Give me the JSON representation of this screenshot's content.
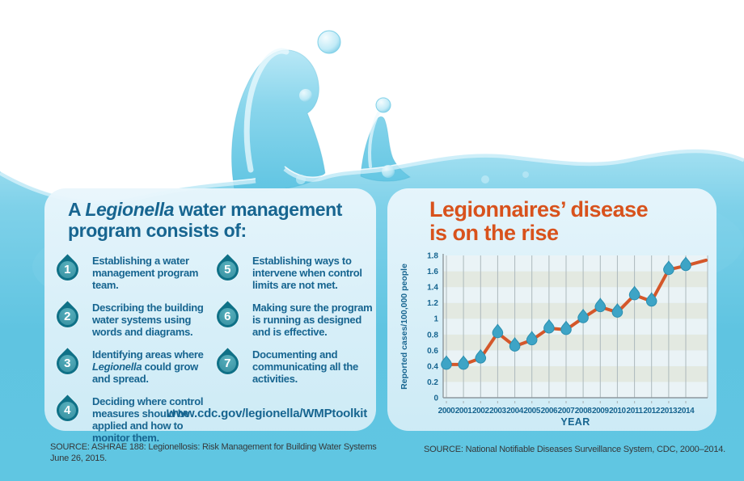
{
  "colors": {
    "title_blue": "#176590",
    "accent_orange": "#d8521c",
    "line_orange": "#d4572a",
    "marker_teal": "#3da4c6",
    "marker_stroke": "#2b8fb0",
    "step_drop_dark": "#0f7187",
    "step_drop_light": "#3e9fafa",
    "panel_bg": "#dff0f8",
    "band_light": "#eaf3f6",
    "band_dark": "#e3e9e1",
    "grid": "#acb8bc",
    "axis": "#8e989d",
    "water_blue": "#5fc4e1",
    "source_text": "#35383a"
  },
  "icons": {
    "step_marker": "water-drop-icon",
    "chart_marker": "water-drop-icon"
  },
  "left_panel": {
    "title_segments": [
      {
        "text": "A ",
        "italic": false
      },
      {
        "text": "Legionella",
        "italic": true
      },
      {
        "text": " water management\nprogram consists of:",
        "italic": false
      }
    ],
    "steps": [
      {
        "number": "1",
        "column": 1,
        "segments": [
          {
            "text": "Establishing a water management program team."
          }
        ]
      },
      {
        "number": "2",
        "column": 1,
        "segments": [
          {
            "text": "Describing the building water systems using words and diagrams."
          }
        ]
      },
      {
        "number": "3",
        "column": 1,
        "segments": [
          {
            "text": "Identifying areas where "
          },
          {
            "text": "Legionella",
            "italic": true
          },
          {
            "text": " could grow and spread."
          }
        ]
      },
      {
        "number": "4",
        "column": 1,
        "segments": [
          {
            "text": "Deciding where control measures should be applied and how to monitor them."
          }
        ]
      },
      {
        "number": "5",
        "column": 2,
        "segments": [
          {
            "text": "Establishing ways to intervene when control limits are not met."
          }
        ]
      },
      {
        "number": "6",
        "column": 2,
        "segments": [
          {
            "text": "Making sure the program is running as designed and is effective."
          }
        ]
      },
      {
        "number": "7",
        "column": 2,
        "segments": [
          {
            "text": "Documenting and communicating all the activities."
          }
        ]
      }
    ],
    "url": "www.cdc.gov/legionella/WMPtoolkit",
    "source": "SOURCE: ASHRAE 188: Legionellosis: Risk Management for Building Water Systems\nJune 26, 2015."
  },
  "right_panel": {
    "title": "Legionnaires’ disease\nis on the rise",
    "source": "SOURCE: National Notifiable Diseases Surveillance System, CDC, 2000–2014."
  },
  "chart_data": {
    "type": "line",
    "title": "Legionnaires’ disease is on the rise",
    "xlabel": "YEAR",
    "ylabel": "Reported cases/100,000 people",
    "x": [
      2000,
      2001,
      2002,
      2003,
      2004,
      2005,
      2006,
      2007,
      2008,
      2009,
      2010,
      2011,
      2012,
      2013,
      2014
    ],
    "values": [
      0.42,
      0.42,
      0.5,
      0.82,
      0.65,
      0.73,
      0.88,
      0.86,
      1.01,
      1.15,
      1.08,
      1.3,
      1.22,
      1.62,
      1.67
    ],
    "trailing_value": 1.74,
    "ylim": [
      0,
      1.8
    ],
    "yticks": [
      0,
      0.2,
      0.4,
      0.6,
      0.8,
      1,
      1.2,
      1.4,
      1.6,
      1.8
    ],
    "ytick_labels": [
      "0",
      "0.2",
      "0.4",
      "0.6",
      "0.8",
      "1",
      "1.2",
      "1.4",
      "1.6",
      "1.8"
    ],
    "grid": "vertical-per-year",
    "legend": "none",
    "marker": "water-drop",
    "background_bands": "alternating every 0.2"
  }
}
